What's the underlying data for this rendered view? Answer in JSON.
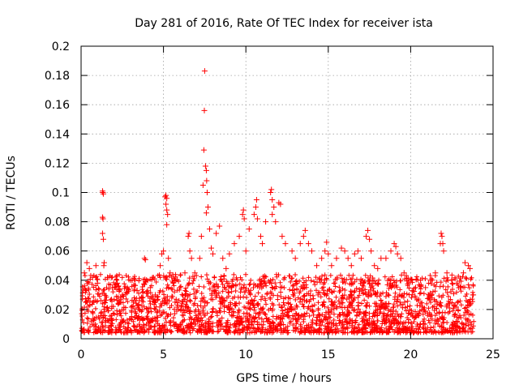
{
  "chart_data": {
    "type": "scatter",
    "title": "Day 281 of 2016, Rate Of TEC Index for receiver ista",
    "xlabel": "GPS time / hours",
    "ylabel": "ROTI / TECUs",
    "xlim": [
      0,
      25
    ],
    "ylim": [
      0,
      0.2
    ],
    "xticks": [
      0,
      5,
      10,
      15,
      20,
      25
    ],
    "xtick_labels": [
      "0",
      "5",
      "10",
      "15",
      "20",
      "25"
    ],
    "yticks": [
      0,
      0.02,
      0.04,
      0.06,
      0.08,
      0.1,
      0.12,
      0.14,
      0.16,
      0.18,
      0.2
    ],
    "ytick_labels": [
      "0",
      "0.02",
      "0.04",
      "0.06",
      "0.08",
      "0.1",
      "0.12",
      "0.14",
      "0.16",
      "0.18",
      "0.2"
    ],
    "grid": true,
    "marker": "+",
    "series": [
      {
        "name": "ROTI",
        "color": "#ff0000",
        "points": [
          [
            0.2,
            0.045
          ],
          [
            0.35,
            0.052
          ],
          [
            0.5,
            0.048
          ],
          [
            0.7,
            0.042
          ],
          [
            0.9,
            0.05
          ],
          [
            1.0,
            0.038
          ],
          [
            1.3,
            0.101
          ],
          [
            1.32,
            0.1
          ],
          [
            1.35,
            0.099
          ],
          [
            1.3,
            0.083
          ],
          [
            1.33,
            0.082
          ],
          [
            1.3,
            0.072
          ],
          [
            1.35,
            0.068
          ],
          [
            1.4,
            0.052
          ],
          [
            1.38,
            0.05
          ],
          [
            1.6,
            0.042
          ],
          [
            1.9,
            0.035
          ],
          [
            2.2,
            0.038
          ],
          [
            2.5,
            0.03
          ],
          [
            2.8,
            0.035
          ],
          [
            3.1,
            0.04
          ],
          [
            3.4,
            0.033
          ],
          [
            3.7,
            0.028
          ],
          [
            3.85,
            0.055
          ],
          [
            3.9,
            0.054
          ],
          [
            4.2,
            0.035
          ],
          [
            4.5,
            0.03
          ],
          [
            4.8,
            0.05
          ],
          [
            4.9,
            0.058
          ],
          [
            5.0,
            0.06
          ],
          [
            5.1,
            0.097
          ],
          [
            5.15,
            0.098
          ],
          [
            5.2,
            0.096
          ],
          [
            5.15,
            0.092
          ],
          [
            5.2,
            0.088
          ],
          [
            5.25,
            0.085
          ],
          [
            5.2,
            0.078
          ],
          [
            5.3,
            0.055
          ],
          [
            5.4,
            0.045
          ],
          [
            5.7,
            0.025
          ],
          [
            6.0,
            0.035
          ],
          [
            6.3,
            0.045
          ],
          [
            6.5,
            0.07
          ],
          [
            6.55,
            0.072
          ],
          [
            6.6,
            0.06
          ],
          [
            6.7,
            0.055
          ],
          [
            6.9,
            0.045
          ],
          [
            7.2,
            0.055
          ],
          [
            7.3,
            0.07
          ],
          [
            7.4,
            0.105
          ],
          [
            7.45,
            0.129
          ],
          [
            7.48,
            0.156
          ],
          [
            7.5,
            0.183
          ],
          [
            7.55,
            0.118
          ],
          [
            7.6,
            0.115
          ],
          [
            7.62,
            0.108
          ],
          [
            7.65,
            0.1
          ],
          [
            7.7,
            0.09
          ],
          [
            7.6,
            0.086
          ],
          [
            7.8,
            0.075
          ],
          [
            7.9,
            0.062
          ],
          [
            8.0,
            0.058
          ],
          [
            8.2,
            0.072
          ],
          [
            8.4,
            0.077
          ],
          [
            8.6,
            0.055
          ],
          [
            8.8,
            0.048
          ],
          [
            9.0,
            0.058
          ],
          [
            9.3,
            0.065
          ],
          [
            9.6,
            0.07
          ],
          [
            9.8,
            0.085
          ],
          [
            9.85,
            0.088
          ],
          [
            9.9,
            0.082
          ],
          [
            10.0,
            0.06
          ],
          [
            10.2,
            0.075
          ],
          [
            10.5,
            0.085
          ],
          [
            10.6,
            0.09
          ],
          [
            10.65,
            0.095
          ],
          [
            10.7,
            0.082
          ],
          [
            10.9,
            0.07
          ],
          [
            11.0,
            0.065
          ],
          [
            11.2,
            0.08
          ],
          [
            11.5,
            0.1
          ],
          [
            11.55,
            0.102
          ],
          [
            11.6,
            0.095
          ],
          [
            11.7,
            0.09
          ],
          [
            11.6,
            0.085
          ],
          [
            11.8,
            0.08
          ],
          [
            12.0,
            0.093
          ],
          [
            12.1,
            0.092
          ],
          [
            12.2,
            0.07
          ],
          [
            12.4,
            0.065
          ],
          [
            12.8,
            0.06
          ],
          [
            13.0,
            0.055
          ],
          [
            13.3,
            0.065
          ],
          [
            13.5,
            0.07
          ],
          [
            13.6,
            0.074
          ],
          [
            13.8,
            0.065
          ],
          [
            14.0,
            0.06
          ],
          [
            14.3,
            0.05
          ],
          [
            14.6,
            0.055
          ],
          [
            14.8,
            0.06
          ],
          [
            14.9,
            0.066
          ],
          [
            15.0,
            0.058
          ],
          [
            15.2,
            0.05
          ],
          [
            15.5,
            0.055
          ],
          [
            15.8,
            0.062
          ],
          [
            16.0,
            0.06
          ],
          [
            16.2,
            0.055
          ],
          [
            16.4,
            0.05
          ],
          [
            16.6,
            0.058
          ],
          [
            16.8,
            0.06
          ],
          [
            17.0,
            0.055
          ],
          [
            17.3,
            0.07
          ],
          [
            17.4,
            0.074
          ],
          [
            17.5,
            0.068
          ],
          [
            17.6,
            0.06
          ],
          [
            17.8,
            0.05
          ],
          [
            18.0,
            0.048
          ],
          [
            18.2,
            0.055
          ],
          [
            18.5,
            0.055
          ],
          [
            18.8,
            0.06
          ],
          [
            19.0,
            0.065
          ],
          [
            19.1,
            0.063
          ],
          [
            19.2,
            0.058
          ],
          [
            19.4,
            0.055
          ],
          [
            19.6,
            0.045
          ],
          [
            20.0,
            0.04
          ],
          [
            20.3,
            0.035
          ],
          [
            20.6,
            0.04
          ],
          [
            20.9,
            0.035
          ],
          [
            21.2,
            0.04
          ],
          [
            21.5,
            0.045
          ],
          [
            21.8,
            0.065
          ],
          [
            21.85,
            0.072
          ],
          [
            21.9,
            0.07
          ],
          [
            21.95,
            0.065
          ],
          [
            22.0,
            0.06
          ],
          [
            22.2,
            0.045
          ],
          [
            22.5,
            0.04
          ],
          [
            22.8,
            0.038
          ],
          [
            23.0,
            0.035
          ],
          [
            23.2,
            0.045
          ],
          [
            23.3,
            0.052
          ],
          [
            23.5,
            0.05
          ],
          [
            23.6,
            0.048
          ],
          [
            23.8,
            0.03
          ]
        ]
      }
    ]
  }
}
